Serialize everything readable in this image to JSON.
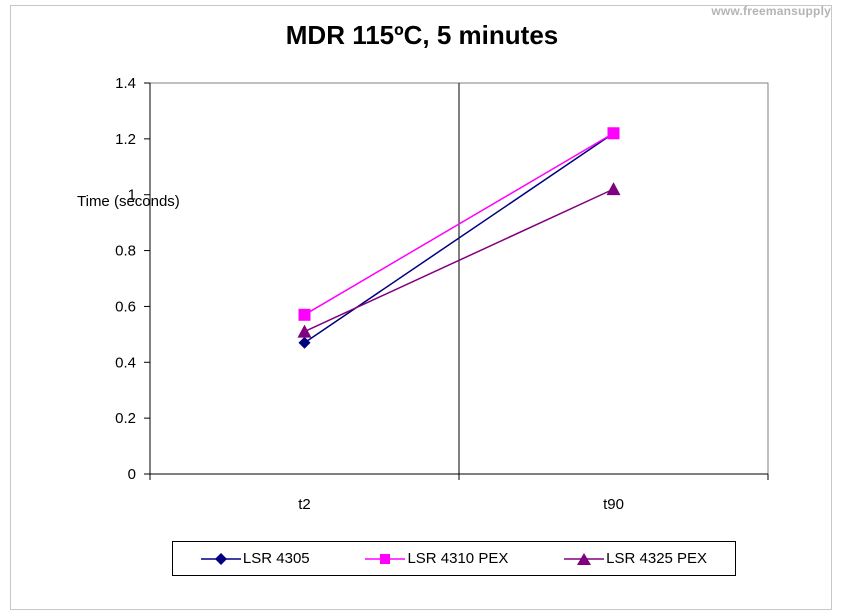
{
  "watermark": "www.freemansupply",
  "chart_data": {
    "type": "line",
    "title": "MDR 115ºC, 5 minutes",
    "xlabel": "",
    "ylabel": "Time (seconds)",
    "categories": [
      "t2",
      "t90"
    ],
    "ylim": [
      0,
      1.4
    ],
    "yticks": [
      "0",
      "0.2",
      "0.4",
      "0.6",
      "0.8",
      "1",
      "1.2",
      "1.4"
    ],
    "grid": "vertical gridlines only",
    "legend_position": "bottom",
    "series": [
      {
        "name": "LSR 4305",
        "values": [
          0.47,
          1.22
        ],
        "color": "#000080",
        "marker": "diamond"
      },
      {
        "name": "LSR 4310 PEX",
        "values": [
          0.57,
          1.22
        ],
        "color": "#ff00ff",
        "marker": "square"
      },
      {
        "name": "LSR 4325 PEX",
        "values": [
          0.51,
          1.02
        ],
        "color": "#800080",
        "marker": "triangle"
      }
    ]
  }
}
